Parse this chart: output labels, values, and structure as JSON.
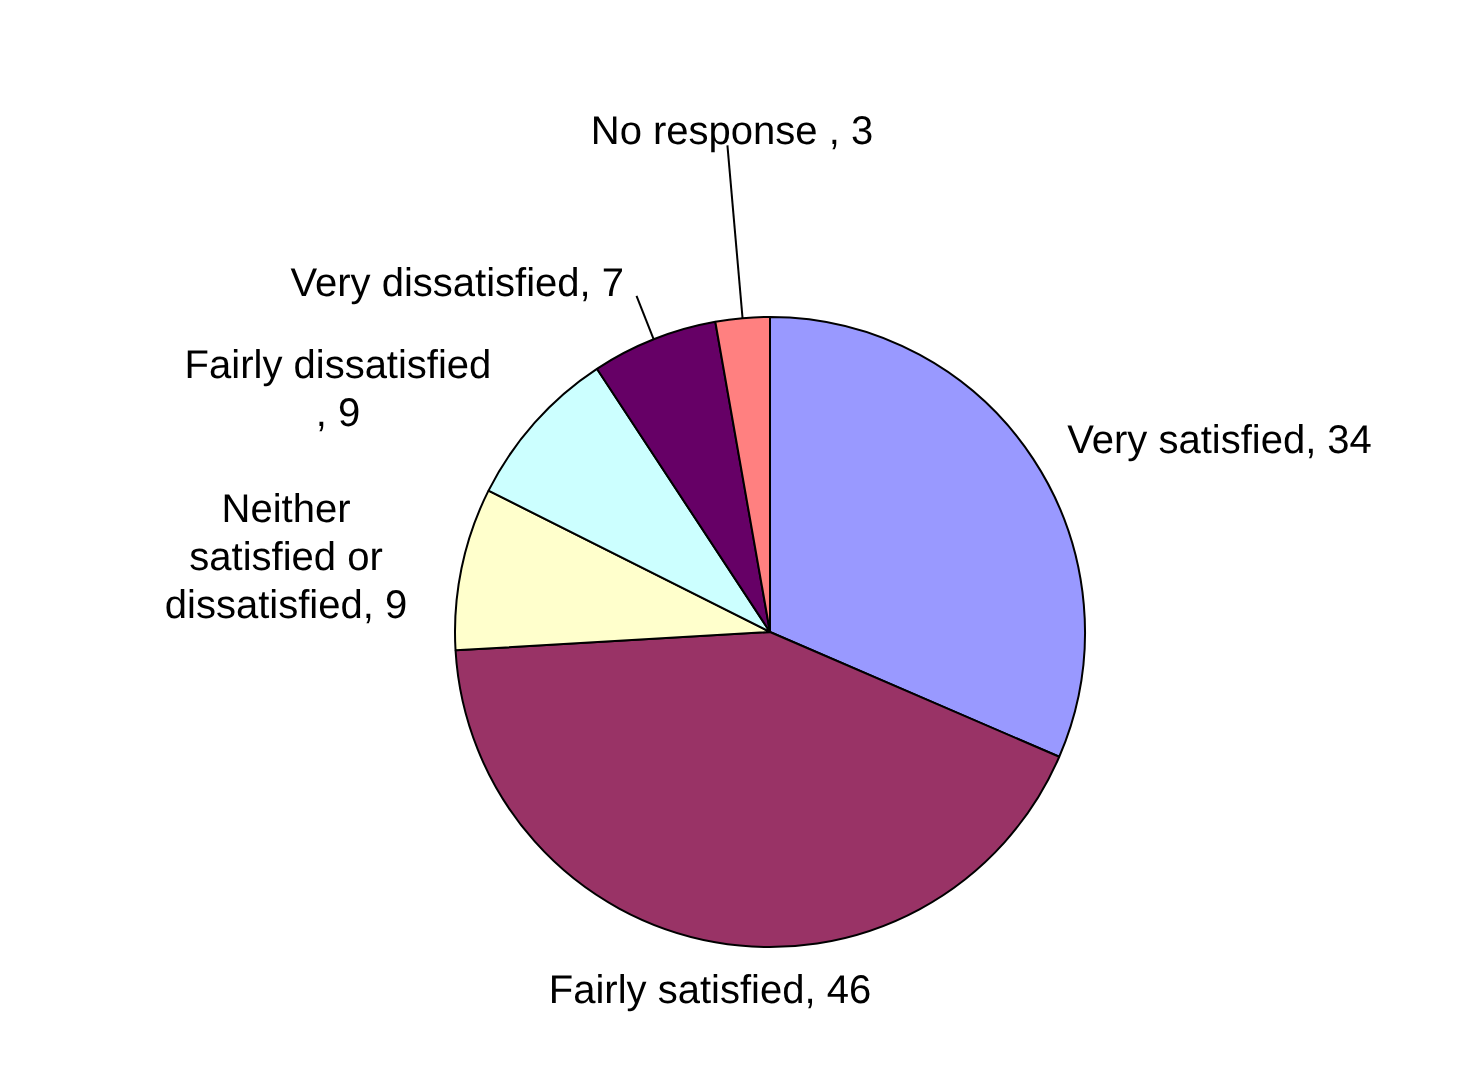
{
  "chart_data": {
    "type": "pie",
    "categories": [
      "Very satisfied",
      "Fairly satisfied",
      "Neither satisfied or dissatisfied",
      "Fairly dissatisfied",
      "Very dissatisfied",
      "No response "
    ],
    "values": [
      34,
      46,
      9,
      9,
      7,
      3
    ],
    "value_labels": [
      ", 34",
      ", 46",
      ", 9",
      ", 9",
      ", 7",
      ", 3"
    ],
    "colors": [
      "#9999ff",
      "#993366",
      "#ffffcc",
      "#ccffff",
      "#660066",
      "#ff8080"
    ],
    "legend": false
  }
}
